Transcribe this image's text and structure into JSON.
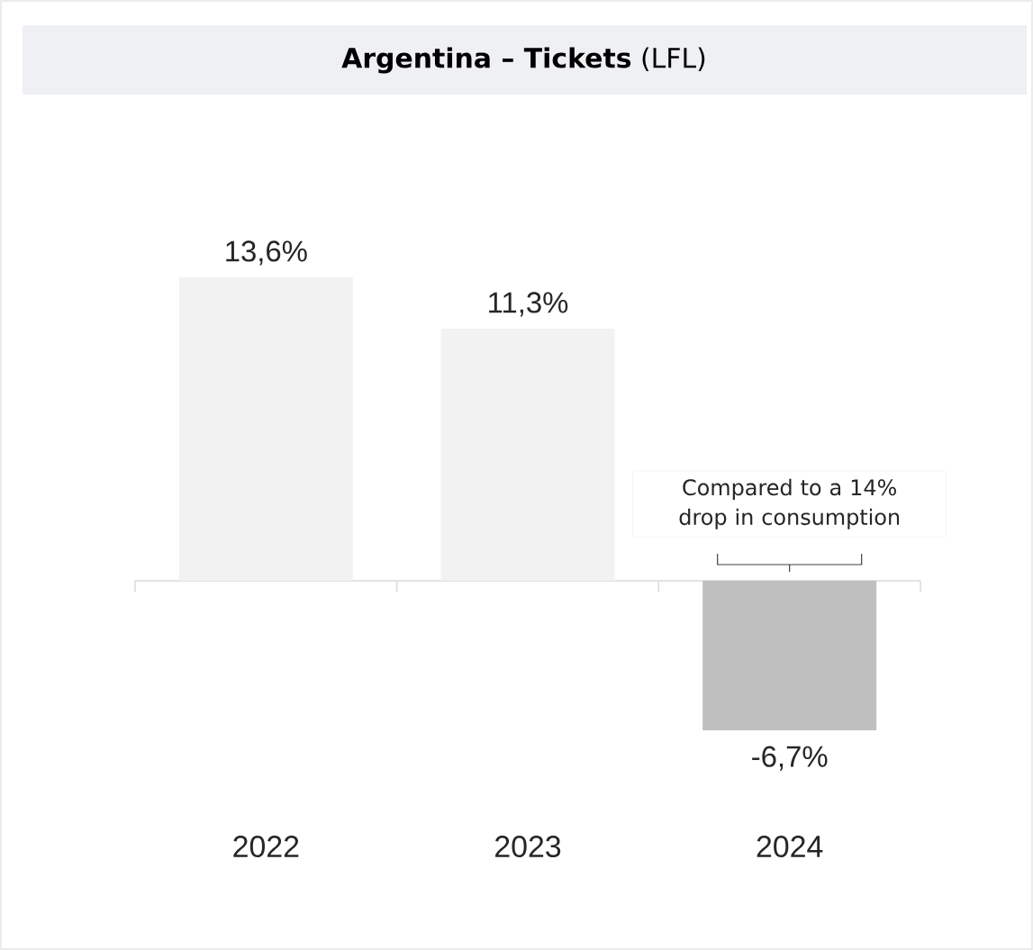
{
  "chart_data": {
    "type": "bar",
    "title": "**Argentina – Tickets** (LFL)",
    "categories": [
      "2022",
      "2023",
      "2024"
    ],
    "values": [
      13.6,
      11.3,
      -6.7
    ],
    "colors": [
      "#f2f2f2",
      "#f2f2f2",
      "#bfbfbf"
    ],
    "value_labels": [
      "13,6%",
      "11,3%",
      "-6,7%"
    ],
    "annotations": [
      {
        "text": "Compared to a 14% drop in consumption",
        "x": "2024",
        "y": 0
      }
    ]
  }
}
